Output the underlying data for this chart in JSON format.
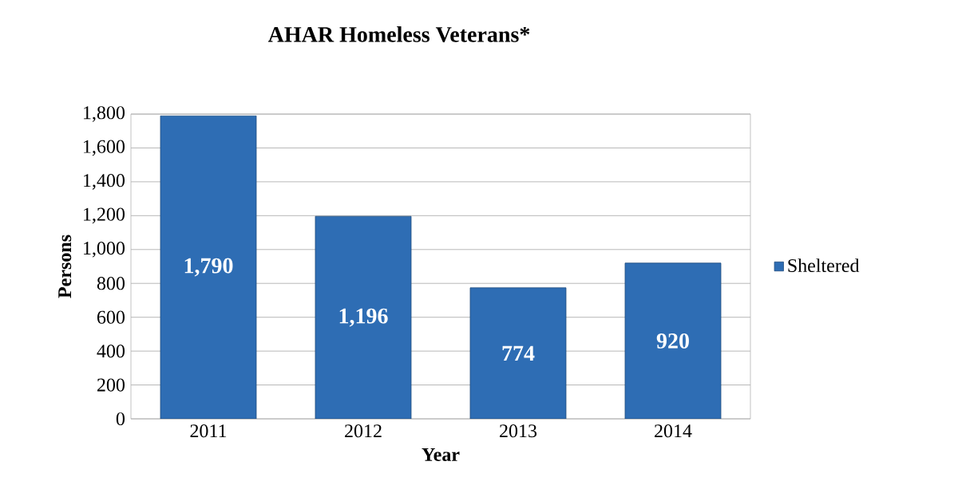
{
  "chart_data": {
    "type": "bar",
    "title": "AHAR Homeless Veterans*",
    "xlabel": "Year",
    "ylabel": "Persons",
    "categories": [
      "2011",
      "2012",
      "2013",
      "2014"
    ],
    "series": [
      {
        "name": "Sheltered",
        "color": "#2e6db4",
        "values": [
          1790,
          1196,
          774,
          920
        ],
        "value_labels": [
          "1,790",
          "1,196",
          "774",
          "920"
        ]
      }
    ],
    "ylim": [
      0,
      1800
    ],
    "yticks": [
      {
        "value": 0,
        "label": "0"
      },
      {
        "value": 200,
        "label": "200"
      },
      {
        "value": 400,
        "label": "400"
      },
      {
        "value": 600,
        "label": "600"
      },
      {
        "value": 800,
        "label": "800"
      },
      {
        "value": 1000,
        "label": "1,000"
      },
      {
        "value": 1200,
        "label": "1,200"
      },
      {
        "value": 1400,
        "label": "1,400"
      },
      {
        "value": 1600,
        "label": "1,600"
      },
      {
        "value": 1800,
        "label": "1,800"
      }
    ],
    "grid": "y",
    "legend": "right"
  }
}
